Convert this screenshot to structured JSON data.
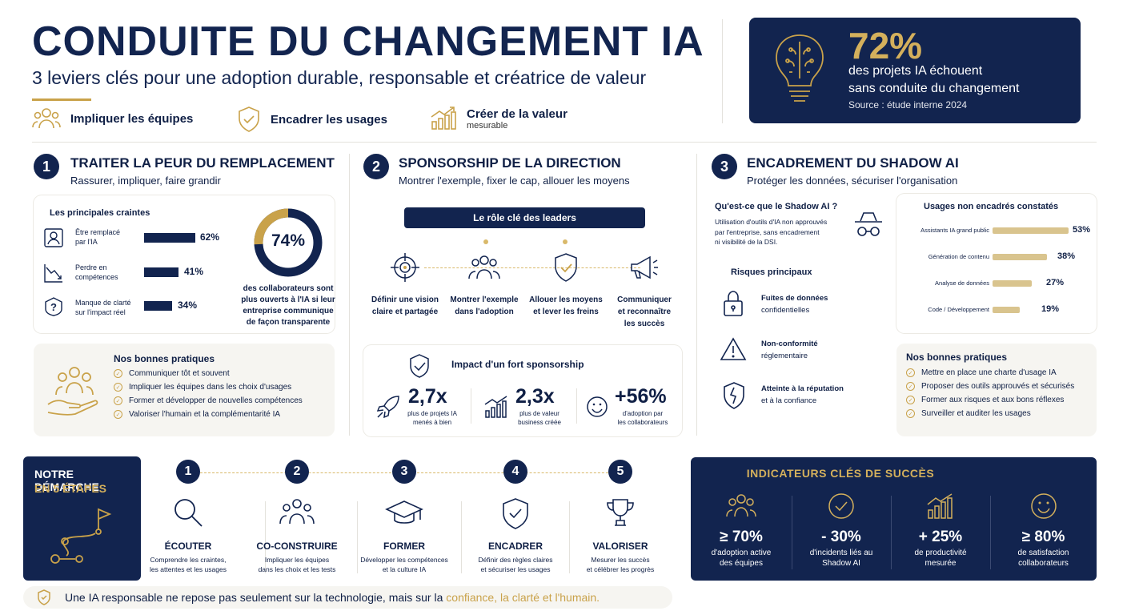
{
  "header": {
    "title": "CONDUITE DU CHANGEMENT IA",
    "subtitle": "3 leviers clés pour une adoption durable, responsable et créatrice de valeur",
    "levers": [
      {
        "label": "Impliquer les équipes",
        "icon": "people-icon"
      },
      {
        "label": "Encadrer les usages",
        "icon": "shield-check-icon"
      },
      {
        "label": "Créer de la valeur",
        "sub": "mesurable",
        "icon": "growth-chart-icon"
      }
    ]
  },
  "stat_banner": {
    "value": "72%",
    "line1": "des projets IA échouent",
    "line2": "sans conduite du changement",
    "source": "Source : étude interne 2024"
  },
  "section1": {
    "num": "1",
    "title": "TRAITER LA PEUR DU REMPLACEMENT",
    "subtitle": "Rassurer, impliquer, faire grandir",
    "fears_title": "Les principales craintes",
    "fears": [
      {
        "label1": "Être remplacé",
        "label2": "par l'IA",
        "value": "62%",
        "pct": 62
      },
      {
        "label1": "Perdre en",
        "label2": "compétences",
        "value": "41%",
        "pct": 41
      },
      {
        "label1": "Manque de clarté",
        "label2": "sur l'impact réel",
        "value": "34%",
        "pct": 34
      }
    ],
    "donut_value": "74%",
    "donut_pct": 74,
    "donut_caption": [
      "des collaborateurs sont",
      "plus ouverts à l'IA si leur",
      "entreprise communique",
      "de façon transparente"
    ],
    "practices_title": "Nos bonnes pratiques",
    "practices": [
      "Communiquer tôt et souvent",
      "Impliquer les équipes dans les choix d'usages",
      "Former et développer de nouvelles compétences",
      "Valoriser l'humain et la complémentarité IA"
    ]
  },
  "section2": {
    "num": "2",
    "title": "SPONSORSHIP DE LA DIRECTION",
    "subtitle": "Montrer l'exemple, fixer le cap, allouer les moyens",
    "leaders_title": "Le rôle clé des leaders",
    "roles": [
      {
        "l1": "Définir une vision",
        "l2": "claire et partagée",
        "l3": ""
      },
      {
        "l1": "Montrer l'exemple",
        "l2": "dans l'adoption",
        "l3": ""
      },
      {
        "l1": "Allouer les moyens",
        "l2": "et lever les freins",
        "l3": ""
      },
      {
        "l1": "Communiquer",
        "l2": "et reconnaître",
        "l3": "les succès"
      }
    ],
    "impact_title": "Impact d'un fort sponsorship",
    "impacts": [
      {
        "value": "2,7x",
        "l1": "plus de projets IA",
        "l2": "menés à bien"
      },
      {
        "value": "2,3x",
        "l1": "plus de valeur",
        "l2": "business créée"
      },
      {
        "value": "+56%",
        "l1": "d'adoption par",
        "l2": "les collaborateurs"
      }
    ]
  },
  "section3": {
    "num": "3",
    "title": "ENCADREMENT DU SHADOW AI",
    "subtitle": "Protéger les données, sécuriser l'organisation",
    "what_title": "Qu'est-ce que le Shadow AI ?",
    "what_text": [
      "Utilisation d'outils d'IA non approuvés",
      "par l'entreprise, sans encadrement",
      "ni visibilité de la DSI."
    ],
    "risks_title": "Risques principaux",
    "risks": [
      {
        "l1": "Fuites de données",
        "l2": "confidentielles"
      },
      {
        "l1": "Non-conformité",
        "l2": "réglementaire"
      },
      {
        "l1": "Atteinte à la réputation",
        "l2": "et à la confiance"
      }
    ],
    "usages_title": "Usages non encadrés constatés",
    "usages": [
      {
        "label": "Assistants IA grand public",
        "value": "53%",
        "pct": 53
      },
      {
        "label": "Génération de contenu",
        "value": "38%",
        "pct": 38
      },
      {
        "label": "Analyse de données",
        "value": "27%",
        "pct": 27
      },
      {
        "label": "Code / Développement",
        "value": "19%",
        "pct": 19
      }
    ],
    "practices_title": "Nos bonnes pratiques",
    "practices": [
      "Mettre en place une charte d'usage IA",
      "Proposer des outils approuvés et sécurisés",
      "Former aux risques et aux bons réflexes",
      "Surveiller et auditer les usages"
    ]
  },
  "approach": {
    "title1": "NOTRE DÉMARCHE",
    "title2": "EN 5 ÉTAPES",
    "steps": [
      {
        "num": "1",
        "title": "ÉCOUTER",
        "l1": "Comprendre les craintes,",
        "l2": "les attentes et les usages"
      },
      {
        "num": "2",
        "title": "CO-CONSTRUIRE",
        "l1": "Impliquer les équipes",
        "l2": "dans les choix et les tests"
      },
      {
        "num": "3",
        "title": "FORMER",
        "l1": "Développer les compétences",
        "l2": "et la culture IA"
      },
      {
        "num": "4",
        "title": "ENCADRER",
        "l1": "Définir des règles claires",
        "l2": "et sécuriser les usages"
      },
      {
        "num": "5",
        "title": "VALORISER",
        "l1": "Mesurer les succès",
        "l2": "et célébrer les progrès"
      }
    ]
  },
  "kpis": {
    "title": "INDICATEURS CLÉS DE SUCCÈS",
    "items": [
      {
        "value": "≥ 70%",
        "l1": "d'adoption active",
        "l2": "des équipes"
      },
      {
        "value": "- 30%",
        "l1": "d'incidents liés au",
        "l2": "Shadow AI"
      },
      {
        "value": "+ 25%",
        "l1": "de productivité",
        "l2": "mesurée"
      },
      {
        "value": "≥ 80%",
        "l1": "de satisfaction",
        "l2": "collaborateurs"
      }
    ]
  },
  "footer": {
    "text": "Une IA responsable ne repose pas seulement sur la technologie, mais sur la ",
    "highlight": "confiance, la clarté et l'humain."
  },
  "colors": {
    "navy": "#12244f",
    "gold": "#c9a24a"
  }
}
